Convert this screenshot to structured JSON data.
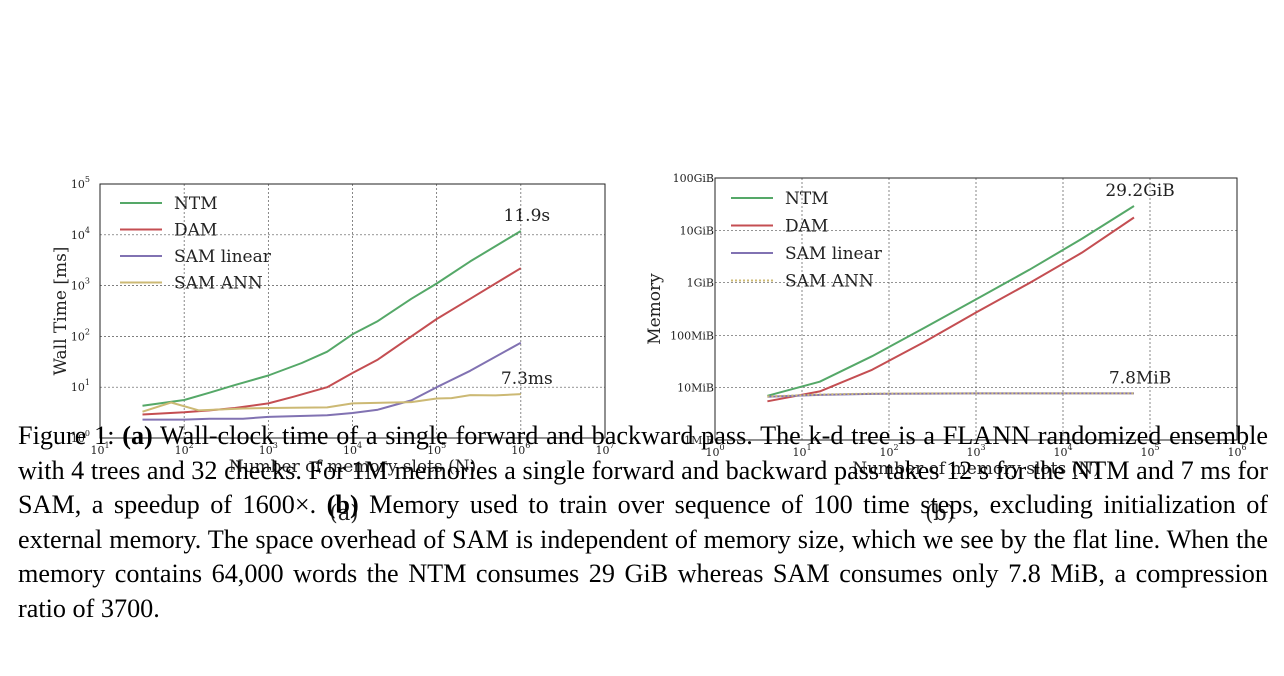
{
  "chart_data": [
    {
      "type": "line",
      "panel_label": "(a)",
      "xlabel": "Number of memory slots (N)",
      "ylabel": "Wall Time [ms]",
      "x_scale": "log",
      "y_scale": "log",
      "xlim": [
        10,
        10000000
      ],
      "ylim": [
        1,
        100000
      ],
      "xticks": [
        {
          "value": 10,
          "base": "10",
          "exp": "1"
        },
        {
          "value": 100,
          "base": "10",
          "exp": "2"
        },
        {
          "value": 1000,
          "base": "10",
          "exp": "3"
        },
        {
          "value": 10000,
          "base": "10",
          "exp": "4"
        },
        {
          "value": 100000,
          "base": "10",
          "exp": "5"
        },
        {
          "value": 1000000,
          "base": "10",
          "exp": "6"
        },
        {
          "value": 10000000,
          "base": "10",
          "exp": "7"
        }
      ],
      "yticks": [
        {
          "value": 1,
          "base": "10",
          "exp": "0"
        },
        {
          "value": 10,
          "base": "10",
          "exp": "1"
        },
        {
          "value": 100,
          "base": "10",
          "exp": "2"
        },
        {
          "value": 1000,
          "base": "10",
          "exp": "3"
        },
        {
          "value": 10000,
          "base": "10",
          "exp": "4"
        },
        {
          "value": 100000,
          "base": "10",
          "exp": "5"
        }
      ],
      "grid": true,
      "legend_position": "top-left",
      "series": [
        {
          "name": "NTM",
          "color": "#55a868",
          "dash": "solid",
          "x": [
            32,
            100,
            200,
            400,
            1000,
            2500,
            5000,
            10000,
            20000,
            50000,
            100000,
            250000,
            1000000
          ],
          "y": [
            4.3,
            5.6,
            7.8,
            11,
            17,
            30,
            50,
            110,
            200,
            550,
            1100,
            3000,
            11900
          ]
        },
        {
          "name": "DAM",
          "color": "#c44e52",
          "dash": "solid",
          "x": [
            32,
            100,
            200,
            400,
            1000,
            2000,
            5000,
            10000,
            20000,
            50000,
            100000,
            250000,
            1000000
          ],
          "y": [
            2.9,
            3.2,
            3.5,
            3.9,
            4.8,
            6.5,
            10,
            19,
            35,
            100,
            220,
            550,
            2200
          ]
        },
        {
          "name": "SAM linear",
          "color": "#8172b2",
          "dash": "solid",
          "x": [
            32,
            100,
            200,
            500,
            1000,
            5000,
            10000,
            20000,
            50000,
            100000,
            250000,
            1000000
          ],
          "y": [
            2.3,
            2.3,
            2.4,
            2.4,
            2.6,
            2.8,
            3.1,
            3.6,
            5.5,
            10,
            21,
            75
          ]
        },
        {
          "name": "SAM ANN",
          "color": "#ccb974",
          "dash": "solid",
          "x": [
            32,
            70,
            150,
            500,
            1000,
            5000,
            10000,
            50000,
            100000,
            150000,
            250000,
            500000,
            1000000
          ],
          "y": [
            3.3,
            5.0,
            3.5,
            3.8,
            3.9,
            4.0,
            4.8,
            5.1,
            6.0,
            6.1,
            7.0,
            6.9,
            7.3
          ]
        }
      ],
      "annotations": [
        {
          "text": "11.9s",
          "x": 1000000,
          "y": 11900
        },
        {
          "text": "7.3ms",
          "x": 1000000,
          "y": 7.3
        }
      ]
    },
    {
      "type": "line",
      "panel_label": "(b)",
      "xlabel": "Number of memory slots (N)",
      "ylabel": "Memory",
      "x_scale": "log",
      "y_scale": "log",
      "xlim": [
        1,
        1000000
      ],
      "ylim_mib": [
        1,
        102400
      ],
      "xticks": [
        {
          "value": 1,
          "base": "10",
          "exp": "0"
        },
        {
          "value": 10,
          "base": "10",
          "exp": "1"
        },
        {
          "value": 100,
          "base": "10",
          "exp": "2"
        },
        {
          "value": 1000,
          "base": "10",
          "exp": "3"
        },
        {
          "value": 10000,
          "base": "10",
          "exp": "4"
        },
        {
          "value": 100000,
          "base": "10",
          "exp": "5"
        },
        {
          "value": 1000000,
          "base": "10",
          "exp": "6"
        }
      ],
      "yticks": [
        {
          "value_mib": 1,
          "label": "1MiB"
        },
        {
          "value_mib": 10,
          "label": "10MiB"
        },
        {
          "value_mib": 100,
          "label": "100MiB"
        },
        {
          "value_mib": 1024,
          "label": "1GiB"
        },
        {
          "value_mib": 10240,
          "label": "10GiB"
        },
        {
          "value_mib": 102400,
          "label": "100GiB"
        }
      ],
      "grid": true,
      "legend_position": "top-left",
      "series": [
        {
          "name": "NTM",
          "color": "#55a868",
          "dash": "solid",
          "x": [
            4,
            16,
            64,
            256,
            1024,
            4096,
            16384,
            65536
          ],
          "y_mib": [
            7,
            13,
            40,
            140,
            500,
            1800,
            7000,
            29900
          ]
        },
        {
          "name": "DAM",
          "color": "#c44e52",
          "dash": "solid",
          "x": [
            4,
            16,
            64,
            256,
            1024,
            4096,
            16384,
            65536
          ],
          "y_mib": [
            5.5,
            8.5,
            22,
            75,
            280,
            1000,
            3800,
            18000
          ]
        },
        {
          "name": "SAM linear",
          "color": "#8172b2",
          "dash": "solid",
          "x": [
            4,
            16,
            64,
            256,
            1024,
            4096,
            16384,
            65536
          ],
          "y_mib": [
            6.7,
            7.3,
            7.6,
            7.7,
            7.8,
            7.8,
            7.8,
            7.8
          ]
        },
        {
          "name": "SAM ANN",
          "color": "#ccb974",
          "dash": "dotted",
          "x": [
            4,
            16,
            64,
            256,
            1024,
            4096,
            16384,
            65536
          ],
          "y_mib": [
            6.8,
            7.4,
            7.7,
            7.8,
            7.8,
            7.8,
            7.8,
            7.8
          ]
        }
      ],
      "annotations": [
        {
          "text": "29.2GiB",
          "x": 65536,
          "y_mib": 29900
        },
        {
          "text": "7.8MiB",
          "x": 65536,
          "y_mib": 7.8
        }
      ]
    }
  ],
  "caption": {
    "figure_label": "Figure 1:",
    "part_a_marker": "(a)",
    "part_a_text": " Wall-clock time of a single forward and backward pass. The k-d tree is a FLANN randomized ensemble with 4 trees and 32 checks. For 1M memories a single forward and backward pass takes 12 s for the NTM and 7 ms for SAM, a speedup of 1600×. ",
    "part_b_marker": "(b)",
    "part_b_text": " Memory used to train over sequence of 100 time steps, excluding initialization of external memory. The space overhead of SAM is independent of memory size, which we see by the flat line. When the memory contains 64,000 words the NTM consumes 29 GiB whereas SAM consumes only 7.8 MiB, a compression ratio of 3700."
  }
}
